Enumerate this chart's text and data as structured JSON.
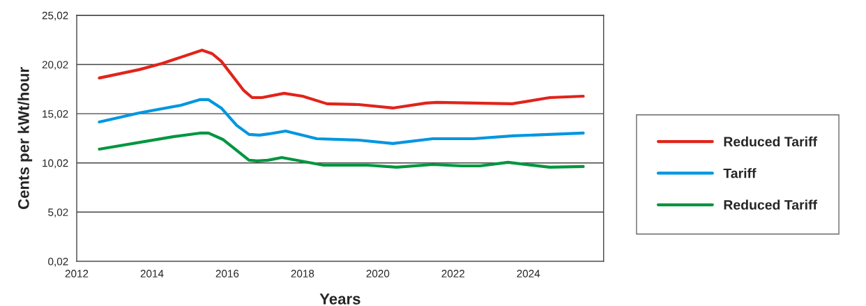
{
  "chart_data": {
    "type": "line",
    "xlabel": "Years",
    "ylabel": "Cents per kWt/hour",
    "xlim": [
      2012,
      2026
    ],
    "xticks": [
      2012,
      2014,
      2016,
      2018,
      2020,
      2022,
      2024
    ],
    "ylim": [
      0.02,
      25.02
    ],
    "yticks": [
      {
        "value": 0.02,
        "label": "0,02"
      },
      {
        "value": 5.02,
        "label": "5,02"
      },
      {
        "value": 10.02,
        "label": "10,02"
      },
      {
        "value": 15.02,
        "label": "15,02"
      },
      {
        "value": 20.02,
        "label": "20,02"
      },
      {
        "value": 25.02,
        "label": "25,02"
      }
    ],
    "grid": "y",
    "legend": "right",
    "marker": "none",
    "line_style": "solid",
    "series": [
      {
        "name": "Reduced Tariff",
        "color": "#e2231a",
        "x": [
          2012.6,
          2013.66,
          2014.27,
          2015.33,
          2015.6,
          2015.84,
          2016.44,
          2016.66,
          2016.92,
          2017.51,
          2018.0,
          2018.65,
          2019.49,
          2020.4,
          2021.28,
          2021.57,
          2023.57,
          2024.57,
          2025.46
        ],
        "values": [
          18.65,
          19.5,
          20.13,
          21.48,
          21.12,
          20.35,
          17.37,
          16.66,
          16.66,
          17.09,
          16.8,
          16.03,
          15.95,
          15.6,
          16.1,
          16.17,
          16.03,
          16.66,
          16.8
        ]
      },
      {
        "name": "Tariff",
        "color": "#0096e0",
        "x": [
          2012.6,
          2013.66,
          2014.77,
          2015.27,
          2015.5,
          2015.84,
          2016.25,
          2016.58,
          2016.86,
          2017.12,
          2017.55,
          2018.38,
          2019.49,
          2020.4,
          2021.46,
          2022.54,
          2023.59,
          2025.46
        ],
        "values": [
          14.18,
          15.1,
          15.88,
          16.45,
          16.45,
          15.6,
          13.83,
          12.91,
          12.84,
          12.98,
          13.26,
          12.48,
          12.34,
          11.99,
          12.48,
          12.48,
          12.77,
          13.05
        ]
      },
      {
        "name": "Reduced Tariff",
        "color": "#009640",
        "x": [
          2012.6,
          2014.59,
          2015.27,
          2015.5,
          2015.88,
          2016.58,
          2016.8,
          2017.08,
          2017.45,
          2018.56,
          2019.73,
          2020.5,
          2021.46,
          2022.22,
          2022.72,
          2023.46,
          2024.57,
          2025.46
        ],
        "values": [
          11.42,
          12.7,
          13.05,
          13.05,
          12.41,
          10.29,
          10.22,
          10.29,
          10.57,
          9.79,
          9.79,
          9.58,
          9.86,
          9.72,
          9.72,
          10.08,
          9.58,
          9.65
        ]
      }
    ]
  }
}
